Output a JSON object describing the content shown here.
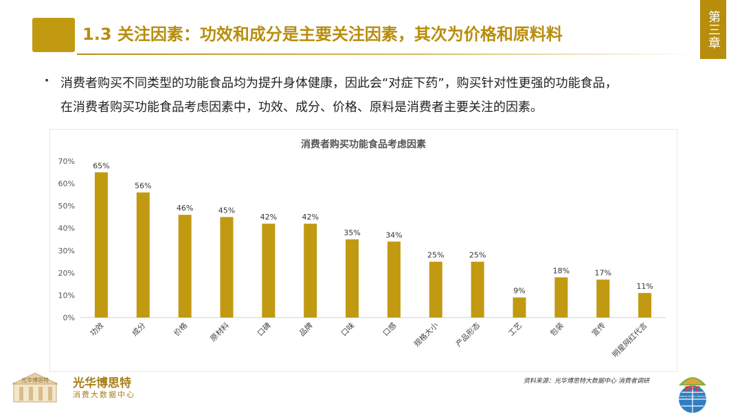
{
  "header": {
    "title": "1.3 关注因素：功效和成分是主要关注因素，其次为价格和原料料",
    "chapter": "第三章"
  },
  "body": {
    "bullet_char": "•",
    "text_line1": "消费者购买不同类型的功能食品均为提升身体健康，因此会“对症下药”，购买针对性更强的功能食品，",
    "text_line2": "在消费者购买功能食品考虑因素中，功效、成分、价格、原料是消费者主要关注的因素。"
  },
  "chart_data": {
    "type": "bar",
    "title": "消费者购买功能食品考虑因素",
    "categories": [
      "功效",
      "成分",
      "价格",
      "原材料",
      "口碑",
      "品牌",
      "口味",
      "口感",
      "规格大小",
      "产品形态",
      "工艺",
      "包装",
      "宣传",
      "明星网红代言"
    ],
    "values": [
      65,
      56,
      46,
      45,
      42,
      42,
      35,
      34,
      25,
      25,
      9,
      18,
      17,
      11
    ],
    "data_labels": [
      "65%",
      "56%",
      "46%",
      "45%",
      "42%",
      "42%",
      "35%",
      "34%",
      "25%",
      "25%",
      "9%",
      "18%",
      "17%",
      "11%"
    ],
    "y_ticks": [
      "0%",
      "10%",
      "20%",
      "30%",
      "40%",
      "50%",
      "60%",
      "70%"
    ],
    "ylim": [
      0,
      70
    ],
    "grid": false,
    "legend": "none",
    "bar_color": "#c19a12"
  },
  "footer": {
    "logo_left_name": "光华博思特",
    "logo_left_sub": "消费大数据中心",
    "logo_left_emblem_text": "光华博思特",
    "source": "资料来源：光华博思特大数据中心 消费者调研",
    "logo_right_text": "FFC",
    "logo_right_sub": "Functional Foods Conference"
  },
  "colors": {
    "accent": "#b88d0c",
    "bar": "#c19a12"
  }
}
